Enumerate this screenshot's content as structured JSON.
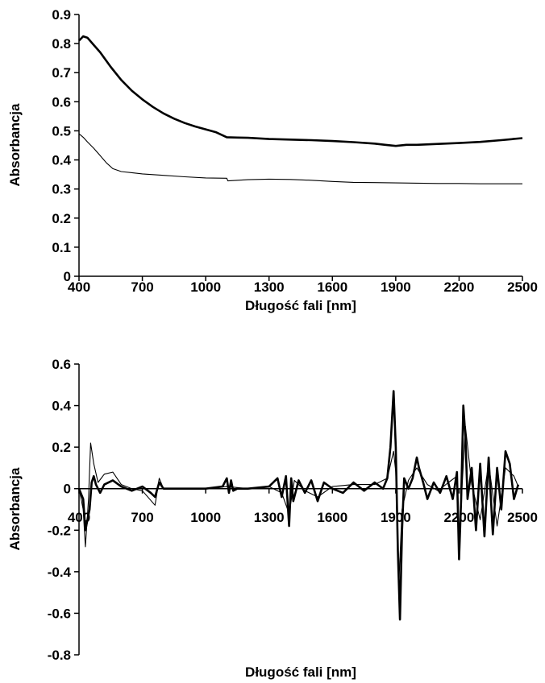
{
  "chart_data": [
    {
      "type": "line",
      "xlabel": "Długość fali [nm]",
      "ylabel": "Absorbancja",
      "xlim": [
        400,
        2500
      ],
      "ylim": [
        0,
        0.9
      ],
      "x_ticks": [
        "400",
        "700",
        "1000",
        "1300",
        "1600",
        "1900",
        "2200",
        "2500"
      ],
      "y_ticks": [
        "0",
        "0.1",
        "0.2",
        "0.3",
        "0.4",
        "0.5",
        "0.6",
        "0.7",
        "0.8",
        "0.9"
      ],
      "grid": false,
      "series": [
        {
          "style": "thick",
          "x": [
            400,
            420,
            440,
            470,
            500,
            550,
            600,
            650,
            700,
            750,
            800,
            850,
            900,
            950,
            1000,
            1050,
            1100,
            1150,
            1200,
            1300,
            1400,
            1500,
            1600,
            1700,
            1800,
            1850,
            1900,
            1950,
            2000,
            2100,
            2200,
            2300,
            2400,
            2500
          ],
          "y": [
            0.81,
            0.825,
            0.82,
            0.795,
            0.77,
            0.72,
            0.675,
            0.638,
            0.608,
            0.582,
            0.56,
            0.542,
            0.527,
            0.515,
            0.505,
            0.495,
            0.478,
            0.477,
            0.476,
            0.472,
            0.47,
            0.468,
            0.465,
            0.461,
            0.456,
            0.452,
            0.448,
            0.452,
            0.452,
            0.455,
            0.458,
            0.462,
            0.468,
            0.475
          ]
        },
        {
          "style": "thin",
          "x": [
            400,
            420,
            440,
            470,
            500,
            530,
            560,
            600,
            650,
            700,
            800,
            900,
            1000,
            1100,
            1105,
            1200,
            1300,
            1400,
            1500,
            1600,
            1700,
            1800,
            1900,
            2000,
            2100,
            2200,
            2300,
            2400,
            2500
          ],
          "y": [
            0.49,
            0.478,
            0.462,
            0.44,
            0.415,
            0.39,
            0.37,
            0.36,
            0.356,
            0.352,
            0.347,
            0.342,
            0.338,
            0.337,
            0.328,
            0.332,
            0.334,
            0.333,
            0.33,
            0.326,
            0.323,
            0.322,
            0.321,
            0.32,
            0.319,
            0.319,
            0.318,
            0.318,
            0.318
          ]
        }
      ]
    },
    {
      "type": "line",
      "xlabel": "Długość fali [nm]",
      "ylabel": "Absorbancja",
      "xlim": [
        400,
        2500
      ],
      "ylim": [
        -0.8,
        0.6
      ],
      "x_ticks": [
        "400",
        "700",
        "1000",
        "1300",
        "1600",
        "1900",
        "2200",
        "2500"
      ],
      "y_ticks": [
        "-0.8",
        "-0.6",
        "-0.4",
        "-0.2",
        "0",
        "0.2",
        "0.4",
        "0.6"
      ],
      "grid": false,
      "series": [
        {
          "style": "thick",
          "x": [
            400,
            420,
            430,
            450,
            460,
            470,
            480,
            500,
            520,
            560,
            600,
            650,
            700,
            740,
            760,
            780,
            800,
            850,
            900,
            1000,
            1080,
            1100,
            1110,
            1120,
            1130,
            1150,
            1200,
            1300,
            1340,
            1360,
            1380,
            1395,
            1405,
            1415,
            1440,
            1470,
            1500,
            1530,
            1560,
            1600,
            1650,
            1700,
            1750,
            1800,
            1840,
            1860,
            1875,
            1890,
            1900,
            1910,
            1920,
            1930,
            1940,
            1960,
            1980,
            2000,
            2010,
            2030,
            2050,
            2080,
            2110,
            2140,
            2170,
            2190,
            2200,
            2210,
            2220,
            2230,
            2240,
            2260,
            2280,
            2300,
            2320,
            2340,
            2360,
            2380,
            2400,
            2420,
            2440,
            2460,
            2480
          ],
          "y": [
            0,
            -0.05,
            -0.2,
            -0.1,
            0.03,
            0.06,
            0.02,
            -0.02,
            0.02,
            0.04,
            0.01,
            -0.01,
            0.01,
            -0.02,
            -0.04,
            0.03,
            0,
            0,
            0,
            0,
            0.01,
            0.05,
            -0.02,
            0.04,
            -0.01,
            0,
            0,
            0.01,
            0.05,
            -0.04,
            0.06,
            -0.18,
            0.05,
            -0.06,
            0.04,
            -0.02,
            0.04,
            -0.06,
            0.03,
            0,
            -0.02,
            0.03,
            -0.01,
            0.03,
            0,
            0.05,
            0.2,
            0.47,
            0.2,
            -0.3,
            -0.63,
            -0.2,
            0.05,
            0,
            0.05,
            0.15,
            0.1,
            0.03,
            -0.05,
            0.03,
            -0.02,
            0.06,
            -0.05,
            0.08,
            -0.34,
            -0.05,
            0.4,
            0.25,
            -0.05,
            0.1,
            -0.2,
            0.12,
            -0.23,
            0.15,
            -0.22,
            0.1,
            -0.1,
            0.18,
            0.12,
            -0.05,
            0.02
          ]
        },
        {
          "style": "thin",
          "x": [
            400,
            420,
            430,
            445,
            455,
            470,
            490,
            520,
            560,
            600,
            650,
            700,
            760,
            780,
            800,
            900,
            1000,
            1100,
            1200,
            1300,
            1360,
            1395,
            1420,
            1470,
            1530,
            1600,
            1700,
            1800,
            1860,
            1890,
            1900,
            1915,
            1930,
            1960,
            2000,
            2050,
            2100,
            2150,
            2190,
            2200,
            2230,
            2260,
            2300,
            2340,
            2380,
            2420,
            2460,
            2480
          ],
          "y": [
            0,
            -0.1,
            -0.28,
            -0.05,
            0.22,
            0.12,
            0.03,
            0.07,
            0.08,
            0.02,
            0,
            -0.01,
            -0.08,
            0.05,
            0,
            0,
            0,
            0.01,
            0,
            0.01,
            -0.02,
            -0.12,
            0.04,
            -0.01,
            -0.04,
            0.01,
            0.02,
            0.02,
            0.05,
            0.18,
            0.08,
            -0.45,
            -0.1,
            0.04,
            0.1,
            0.02,
            -0.01,
            0.03,
            0.06,
            -0.25,
            0.3,
            0.02,
            -0.15,
            0.12,
            -0.18,
            0.1,
            0.06,
            0.01
          ]
        }
      ]
    }
  ]
}
